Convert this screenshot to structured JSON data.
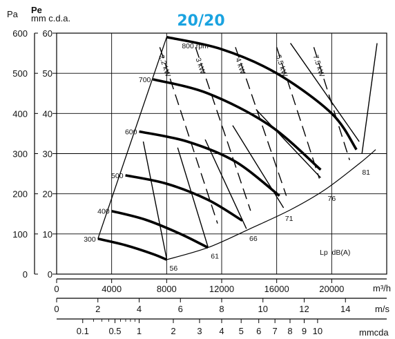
{
  "chart_data": {
    "type": "line",
    "title": "20/20",
    "y_label_pa": "Pa",
    "y_label_pe": "Pe",
    "y_label_mmcda": "mm c.d.a.",
    "x_unit_flow": "m³/h",
    "x_unit_velocity": "m/s",
    "x_unit_mmcda": "mmcda",
    "lp_label": "Lp  dB(A)",
    "axes": {
      "flow": {
        "range": [
          0,
          24000
        ],
        "ticks": [
          0,
          4000,
          8000,
          12000,
          16000,
          20000
        ]
      },
      "velocity": {
        "range": [
          0,
          16
        ],
        "ticks": [
          0,
          2,
          4,
          6,
          8,
          10,
          12,
          14
        ]
      },
      "dynamic_pressure_mmcda": {
        "ticks": [
          0.1,
          0.5,
          1,
          2,
          3,
          4,
          5,
          6,
          7,
          8,
          9,
          10
        ],
        "tick_labels": [
          "0.1",
          "0.5",
          "1",
          "2",
          "3",
          "4",
          "5",
          "6",
          "7",
          "8",
          "9",
          "10"
        ]
      },
      "pressure_pa": {
        "range": [
          0,
          600
        ],
        "ticks": [
          0,
          100,
          200,
          300,
          400,
          500,
          600
        ]
      },
      "pressure_mmcda": {
        "range": [
          0,
          60
        ],
        "ticks": [
          0,
          10,
          20,
          30,
          40,
          50,
          60
        ]
      }
    },
    "rpm_curves": [
      {
        "label": "300",
        "points": [
          [
            3000,
            88
          ],
          [
            5000,
            72
          ],
          [
            7000,
            50
          ],
          [
            8000,
            36
          ]
        ]
      },
      {
        "label": "400",
        "points": [
          [
            4000,
            157
          ],
          [
            6500,
            135
          ],
          [
            9000,
            100
          ],
          [
            11000,
            66
          ]
        ]
      },
      {
        "label": "500",
        "points": [
          [
            5000,
            246
          ],
          [
            8000,
            225
          ],
          [
            11000,
            185
          ],
          [
            13500,
            133
          ]
        ]
      },
      {
        "label": "600",
        "points": [
          [
            6000,
            355
          ],
          [
            9500,
            330
          ],
          [
            13000,
            280
          ],
          [
            16200,
            195
          ]
        ]
      },
      {
        "label": "700",
        "points": [
          [
            7000,
            485
          ],
          [
            11000,
            450
          ],
          [
            15500,
            370
          ],
          [
            19200,
            260
          ]
        ]
      },
      {
        "label": "800 rpm",
        "points": [
          [
            8000,
            590
          ],
          [
            12000,
            560
          ],
          [
            16000,
            500
          ],
          [
            20000,
            400
          ],
          [
            21800,
            310
          ]
        ]
      }
    ],
    "kw_lines": [
      {
        "label": "2.2 kW",
        "points": [
          [
            7500,
            565
          ],
          [
            11700,
            126
          ]
        ]
      },
      {
        "label": "3 kW",
        "points": [
          [
            10100,
            565
          ],
          [
            14100,
            158
          ]
        ]
      },
      {
        "label": "4 kW",
        "points": [
          [
            13000,
            565
          ],
          [
            16700,
            195
          ]
        ]
      },
      {
        "label": "5.5 kW",
        "points": [
          [
            16000,
            565
          ],
          [
            19100,
            238
          ]
        ]
      },
      {
        "label": "7.5 kW",
        "points": [
          [
            18700,
            565
          ],
          [
            21300,
            284
          ]
        ]
      }
    ],
    "system_lines": [
      [
        [
          8000,
          38
        ],
        [
          6300,
          330
        ]
      ],
      [
        [
          11000,
          68
        ],
        [
          8800,
          315
        ]
      ],
      [
        [
          13800,
          113
        ],
        [
          10800,
          335
        ]
      ],
      [
        [
          16500,
          165
        ],
        [
          12800,
          370
        ]
      ],
      [
        [
          19200,
          240
        ],
        [
          14500,
          410
        ]
      ],
      [
        [
          22000,
          330
        ],
        [
          17000,
          575
        ]
      ],
      [
        [
          23300,
          575
        ],
        [
          22200,
          300
        ]
      ]
    ],
    "boundary_left": [
      [
        3000,
        88
      ],
      [
        8000,
        590
      ]
    ],
    "boundary_top": [
      [
        8000,
        590
      ],
      [
        23300,
        590
      ]
    ],
    "boundary_bottom": [
      [
        8000,
        36
      ],
      [
        11000,
        66
      ],
      [
        14000,
        112
      ],
      [
        17000,
        160
      ],
      [
        19500,
        210
      ],
      [
        22000,
        275
      ],
      [
        23200,
        310
      ]
    ],
    "lp_dba": [
      {
        "label": "56",
        "point": [
          8000,
          36
        ]
      },
      {
        "label": "61",
        "point": [
          11000,
          66
        ]
      },
      {
        "label": "66",
        "point": [
          13800,
          110
        ]
      },
      {
        "label": "71",
        "point": [
          16400,
          160
        ]
      },
      {
        "label": "76",
        "point": [
          19500,
          210
        ]
      },
      {
        "label": "81",
        "point": [
          22000,
          275
        ]
      }
    ]
  }
}
